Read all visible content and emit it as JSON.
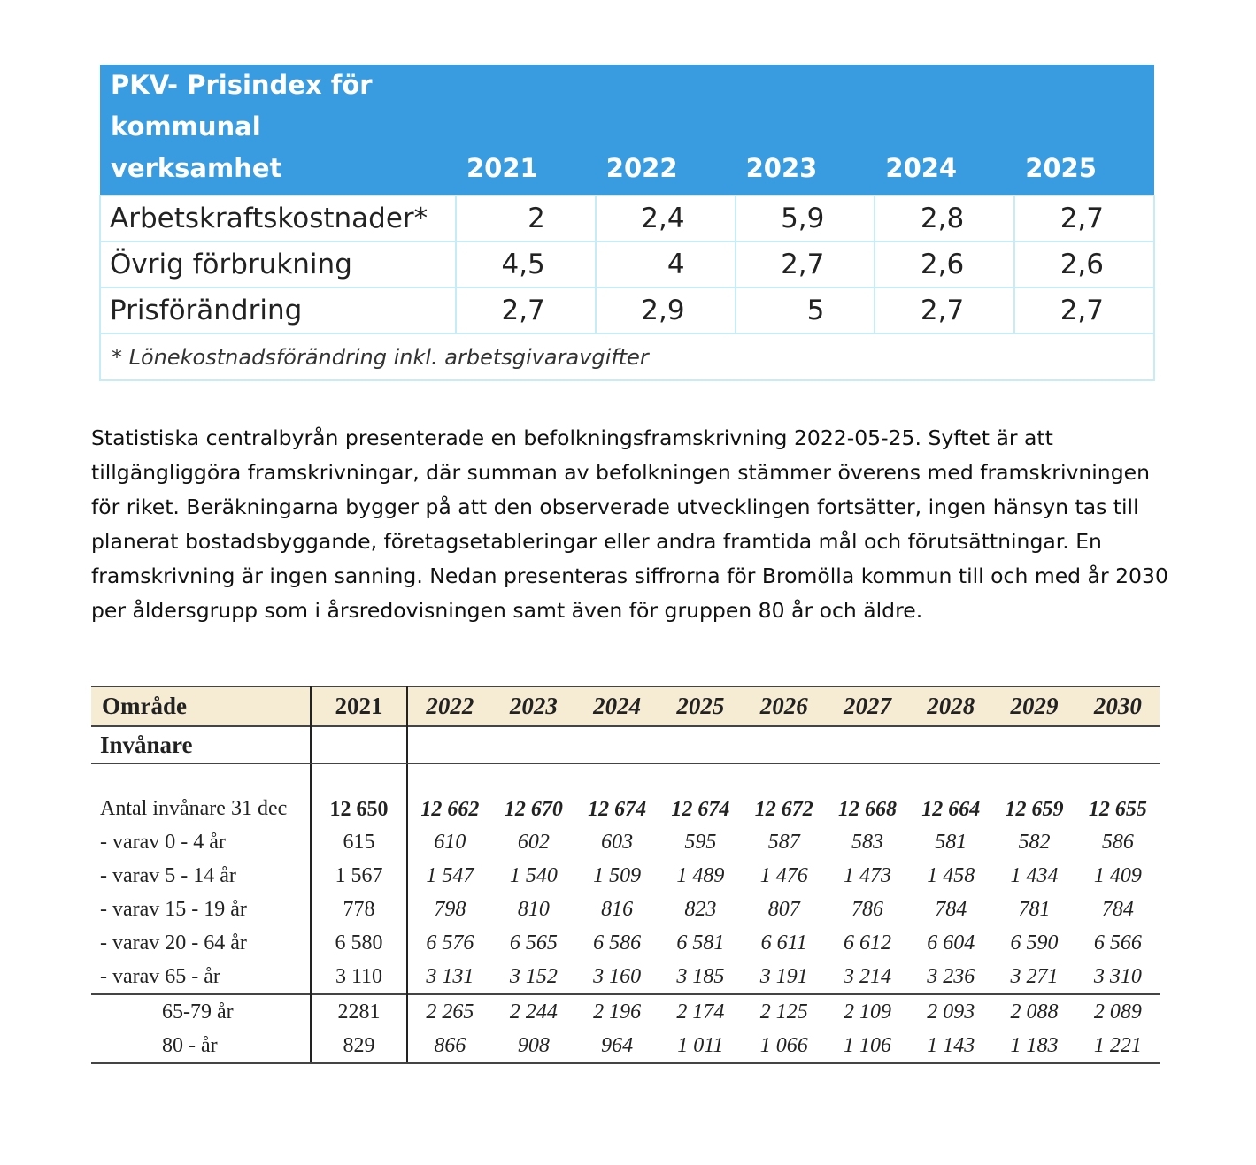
{
  "pkv_table": {
    "title": "PKV- Prisindex för kommunal verksamhet",
    "title_lines": [
      "PKV- Prisindex för",
      "kommunal",
      "verksamhet"
    ],
    "years": [
      "2021",
      "2022",
      "2023",
      "2024",
      "2025"
    ],
    "rows": [
      {
        "label": "Arbetskraftskostnader*",
        "values": [
          "2",
          "2,4",
          "5,9",
          "2,8",
          "2,7"
        ]
      },
      {
        "label": "Övrig förbrukning",
        "values": [
          "4,5",
          "4",
          "2,7",
          "2,6",
          "2,6"
        ]
      },
      {
        "label": "Prisförändring",
        "values": [
          "2,7",
          "2,9",
          "5",
          "2,7",
          "2,7"
        ]
      }
    ],
    "footnote": "* Lönekostnadsförändring inkl. arbetsgivaravgifter",
    "header_color": "#3a9ce0"
  },
  "paragraph": "Statistiska centralbyrån presenterade en befolkningsframskrivning 2022-05-25. Syftet är att tillgängliggöra framskrivningar, där summan av befolkningen stämmer överens med framskrivningen för riket. Beräkningarna bygger på att den observerade utvecklingen fortsätter, ingen hänsyn tas till planerat bostadsbyggande, företagsetableringar eller andra framtida mål och förutsättningar. En framskrivning är ingen sanning. Nedan presenteras siffrorna för Bromölla kommun till och med år 2030 per åldersgrupp som i årsredovisningen samt även för gruppen 80 år och äldre.",
  "pop_table": {
    "header_label": "Område",
    "years": [
      "2021",
      "2022",
      "2023",
      "2024",
      "2025",
      "2026",
      "2027",
      "2028",
      "2029",
      "2030"
    ],
    "section": "Invånare",
    "rows": [
      {
        "label": "Antal invånare 31 dec",
        "values": [
          "12 650",
          "12 662",
          "12 670",
          "12 674",
          "12 674",
          "12 672",
          "12 668",
          "12 664",
          "12 659",
          "12 655"
        ]
      },
      {
        "label": "- varav 0 - 4 år",
        "values": [
          "615",
          "610",
          "602",
          "603",
          "595",
          "587",
          "583",
          "581",
          "582",
          "586"
        ]
      },
      {
        "label": "- varav 5 - 14 år",
        "values": [
          "1 567",
          "1 547",
          "1 540",
          "1 509",
          "1 489",
          "1 476",
          "1 473",
          "1 458",
          "1 434",
          "1 409"
        ]
      },
      {
        "label": "- varav 15 - 19 år",
        "values": [
          "778",
          "798",
          "810",
          "816",
          "823",
          "807",
          "786",
          "784",
          "781",
          "784"
        ]
      },
      {
        "label": "- varav 20 - 64 år",
        "values": [
          "6 580",
          "6 576",
          "6 565",
          "6 586",
          "6 581",
          "6 611",
          "6 612",
          "6 604",
          "6 590",
          "6 566"
        ]
      },
      {
        "label": "- varav 65 - år",
        "values": [
          "3 110",
          "3 131",
          "3 152",
          "3 160",
          "3 185",
          "3 191",
          "3 214",
          "3 236",
          "3 271",
          "3 310"
        ]
      },
      {
        "label": "65-79 år",
        "values": [
          "2281",
          "2 265",
          "2 244",
          "2 196",
          "2 174",
          "2 125",
          "2 109",
          "2 093",
          "2 088",
          "2 089"
        ]
      },
      {
        "label": "80 - år",
        "values": [
          "829",
          "866",
          "908",
          "964",
          "1 011",
          "1 066",
          "1 106",
          "1 143",
          "1 183",
          "1 221"
        ]
      }
    ],
    "header_color": "#f6ecd4"
  }
}
